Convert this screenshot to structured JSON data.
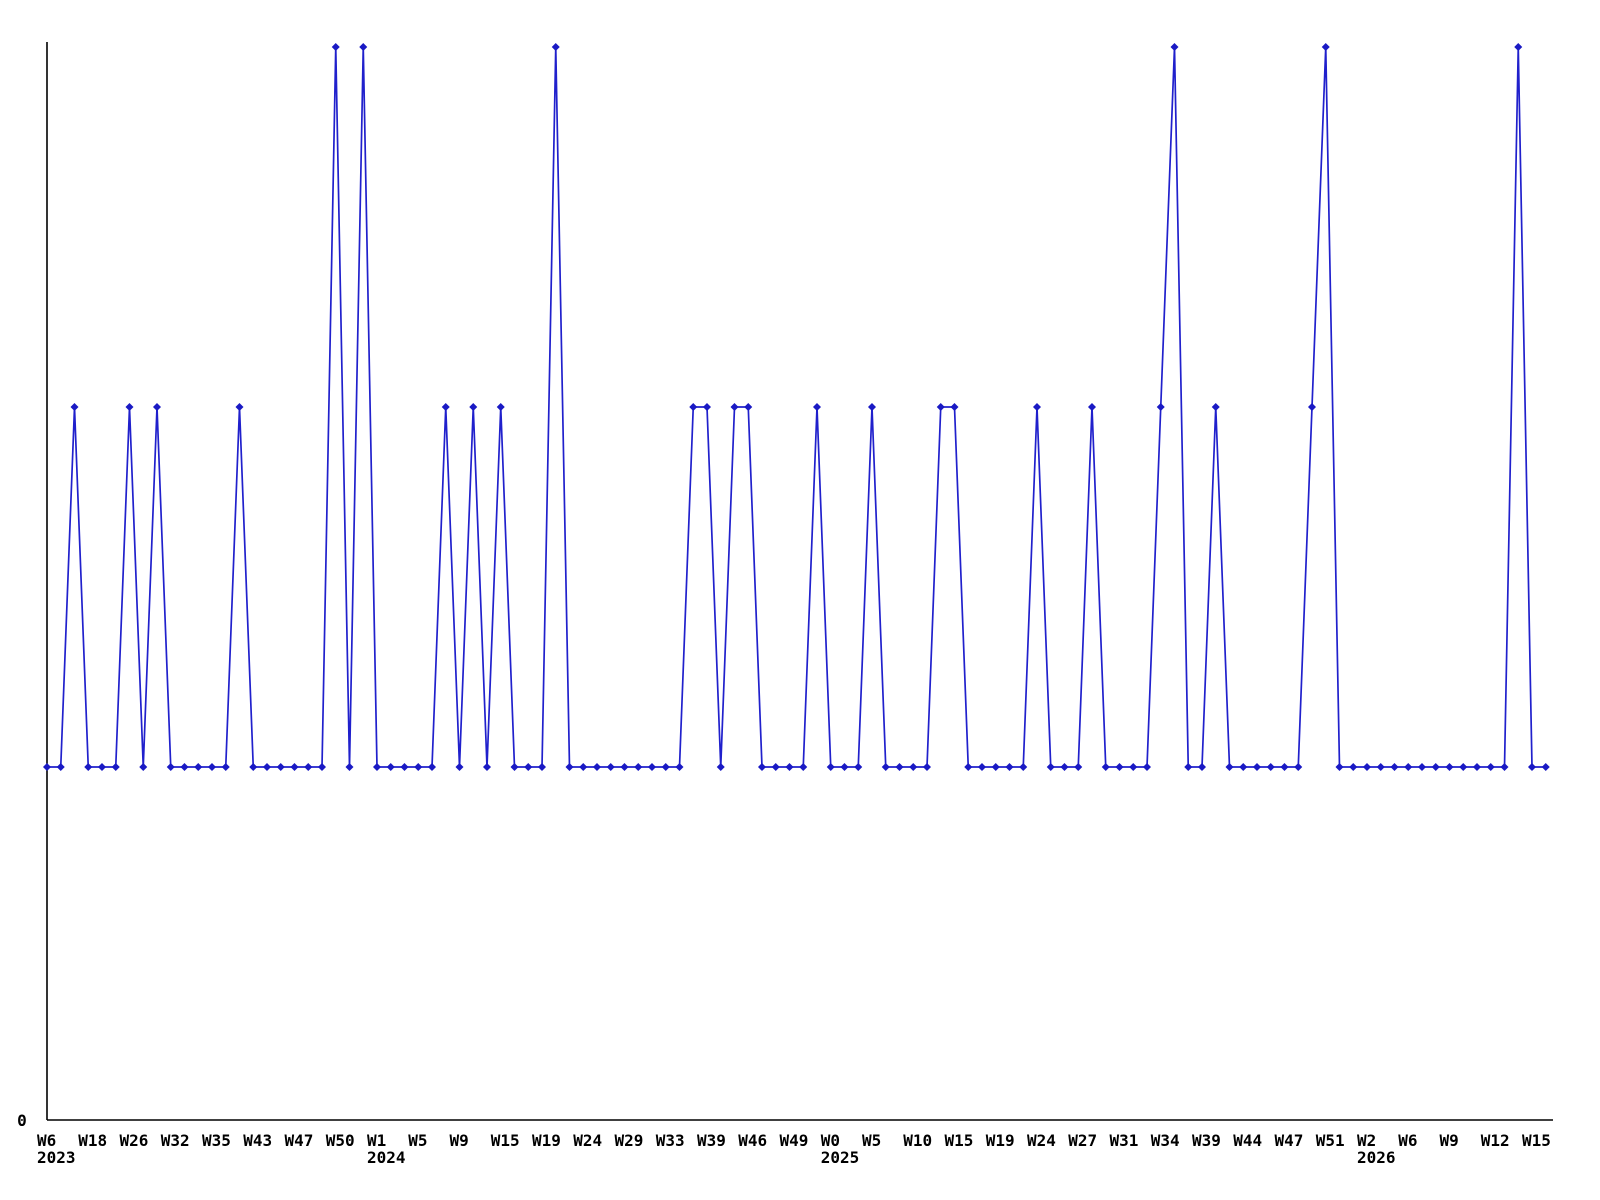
{
  "chart_data": {
    "type": "line",
    "title": "",
    "xlabel": "",
    "ylabel": "",
    "legend": "none",
    "grid": false,
    "marker_shape": "diamond",
    "line_color": "#2020cc",
    "marker_color": "#1a1ac4",
    "axis_color": "#000000",
    "background_color": "#ffffff",
    "y_axis": {
      "zero_label": "0",
      "levels_used": [
        1,
        2,
        3
      ]
    },
    "tick_interval": 3,
    "x_ticks": [
      {
        "label": "W6",
        "year": "2023"
      },
      {
        "label": "W18"
      },
      {
        "label": "W26"
      },
      {
        "label": "W32"
      },
      {
        "label": "W35"
      },
      {
        "label": "W43"
      },
      {
        "label": "W47"
      },
      {
        "label": "W50"
      },
      {
        "label": "W1",
        "year": "2024"
      },
      {
        "label": "W5"
      },
      {
        "label": "W9"
      },
      {
        "label": "W15"
      },
      {
        "label": "W19"
      },
      {
        "label": "W24"
      },
      {
        "label": "W29"
      },
      {
        "label": "W33"
      },
      {
        "label": "W39"
      },
      {
        "label": "W46"
      },
      {
        "label": "W49"
      },
      {
        "label": "W0",
        "year": "2025"
      },
      {
        "label": "W5"
      },
      {
        "label": "W10"
      },
      {
        "label": "W15"
      },
      {
        "label": "W19"
      },
      {
        "label": "W24"
      },
      {
        "label": "W27"
      },
      {
        "label": "W31"
      },
      {
        "label": "W34"
      },
      {
        "label": "W39"
      },
      {
        "label": "W44"
      },
      {
        "label": "W47"
      },
      {
        "label": "W51"
      },
      {
        "label": "W2",
        "year": "2026"
      },
      {
        "label": "W6"
      },
      {
        "label": "W9"
      },
      {
        "label": "W12"
      },
      {
        "label": "W15"
      }
    ],
    "values": [
      1,
      1,
      2,
      1,
      1,
      1,
      2,
      1,
      2,
      1,
      1,
      1,
      1,
      1,
      2,
      1,
      1,
      1,
      1,
      1,
      1,
      3,
      1,
      3,
      1,
      1,
      1,
      1,
      1,
      2,
      1,
      2,
      1,
      2,
      1,
      1,
      1,
      3,
      1,
      1,
      1,
      1,
      1,
      1,
      1,
      1,
      1,
      2,
      2,
      1,
      2,
      2,
      1,
      1,
      1,
      1,
      2,
      1,
      1,
      1,
      2,
      1,
      1,
      1,
      1,
      2,
      2,
      1,
      1,
      1,
      1,
      1,
      2,
      1,
      1,
      1,
      2,
      1,
      1,
      1,
      1,
      2,
      3,
      1,
      1,
      2,
      1,
      1,
      1,
      1,
      1,
      1,
      2,
      3,
      1,
      1,
      1,
      1,
      1,
      1,
      1,
      1,
      1,
      1,
      1,
      1,
      1,
      3,
      1,
      1
    ]
  }
}
